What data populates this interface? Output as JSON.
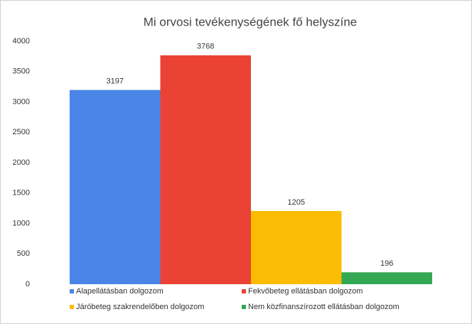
{
  "chart_data": {
    "type": "bar",
    "title": "Mi orvosi tevékenységének fő helyszíne",
    "series": [
      {
        "name": "Alapellátásban dolgozom",
        "color": "#4a86e8",
        "values": [
          3197
        ]
      },
      {
        "name": "Fekvőbeteg ellátásban dolgozom",
        "color": "#ea4335",
        "values": [
          3768
        ]
      },
      {
        "name": "Járóbeteg szakrendelőben dolgozom",
        "color": "#fbbc04",
        "values": [
          1205
        ]
      },
      {
        "name": "Nem közfinanszírozott ellátásban dolgozom",
        "color": "#34a853",
        "values": [
          196
        ]
      }
    ],
    "ylim": [
      0,
      4000
    ],
    "yticks": [
      0,
      500,
      1000,
      1500,
      2000,
      2500,
      3000,
      3500,
      4000
    ],
    "grid": false,
    "legend": "bottom"
  }
}
